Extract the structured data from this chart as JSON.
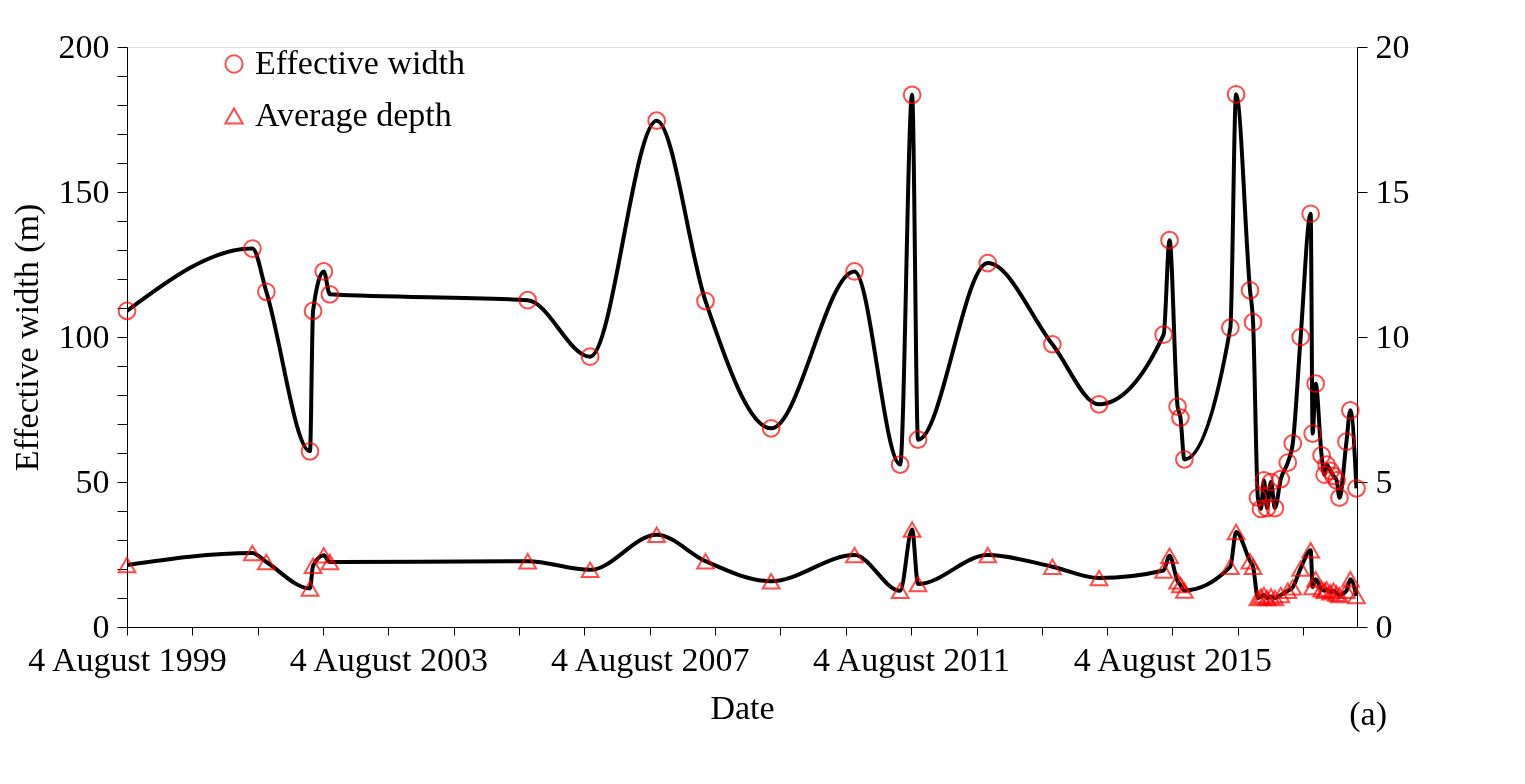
{
  "chart_data": {
    "type": "line",
    "xlabel": "Date",
    "ylabel": "Effective width (m)",
    "x": [
      "1999-08-04",
      "2001-07-05",
      "2001-09-21",
      "2002-05-23",
      "2002-06-09",
      "2002-08-08",
      "2002-09-11",
      "2005-09-21",
      "2006-09-05",
      "2007-09-12",
      "2008-06-11",
      "2009-06-13",
      "2010-09-22",
      "2011-06-04",
      "2011-08-10",
      "2011-09-12",
      "2012-10-06",
      "2013-10-02",
      "2014-06-20",
      "2015-06-16",
      "2015-07-19",
      "2015-09-02",
      "2015-09-18",
      "2015-10-10",
      "2016-06-23",
      "2016-07-25",
      "2016-10-11",
      "2016-10-28",
      "2016-11-24",
      "2016-12-11",
      "2016-12-28",
      "2017-01-14",
      "2017-02-05",
      "2017-02-27",
      "2017-04-01",
      "2017-05-10",
      "2017-06-07",
      "2017-07-21",
      "2017-09-15",
      "2017-09-26",
      "2017-10-13",
      "2017-11-15",
      "2017-12-02",
      "2017-12-13",
      "2018-01-04",
      "2018-01-21",
      "2018-02-07",
      "2018-02-23",
      "2018-04-03",
      "2018-04-25",
      "2018-05-29"
    ],
    "series": [
      {
        "name": "Effective width",
        "color": "#000000",
        "marker": "circle",
        "values": [
          109,
          130.5,
          115.6,
          60.6,
          109,
          122.6,
          114.7,
          112.7,
          93.2,
          174.6,
          112.4,
          68.5,
          122.6,
          56,
          183.5,
          64.6,
          125.5,
          97.5,
          76.8,
          100.8,
          133.4,
          76,
          72.2,
          57.8,
          103.2,
          183.7,
          116.1,
          105.1,
          44.6,
          40.7,
          50.6,
          41,
          50,
          41,
          51,
          56.7,
          63.3,
          100,
          142.5,
          66.7,
          83.9,
          59.2,
          52.5,
          56,
          53.8,
          52.1,
          50.6,
          44.6,
          63.9,
          74.7,
          47.8
        ]
      },
      {
        "name": "Average depth",
        "color": "#000000",
        "marker": "triangle",
        "axis": "y2",
        "values": [
          2.14,
          2.55,
          2.24,
          1.33,
          2.11,
          2.47,
          2.24,
          2.27,
          1.97,
          3.18,
          2.27,
          1.58,
          2.48,
          1.25,
          3.36,
          1.48,
          2.48,
          2.08,
          1.69,
          1.95,
          2.46,
          1.58,
          1.45,
          1.26,
          2.08,
          3.28,
          2.27,
          2.08,
          1.0,
          1.05,
          1.1,
          1.0,
          1.05,
          1.0,
          1.1,
          1.25,
          1.37,
          2.02,
          2.65,
          1.38,
          1.65,
          1.3,
          1.25,
          1.3,
          1.2,
          1.25,
          1.15,
          1.1,
          1.25,
          1.65,
          1.07
        ]
      }
    ],
    "xlim": [
      "1999-08-04",
      "2018-06-01"
    ],
    "xticks": [
      {
        "value": "1999-08-04",
        "label": "4 August 1999"
      },
      {
        "value": "2000-08-04",
        "label": null
      },
      {
        "value": "2001-08-04",
        "label": null
      },
      {
        "value": "2002-08-04",
        "label": null
      },
      {
        "value": "2003-08-04",
        "label": "4 August 2003"
      },
      {
        "value": "2004-08-04",
        "label": null
      },
      {
        "value": "2005-08-04",
        "label": null
      },
      {
        "value": "2006-08-04",
        "label": null
      },
      {
        "value": "2007-08-04",
        "label": "4 August 2007"
      },
      {
        "value": "2008-08-04",
        "label": null
      },
      {
        "value": "2009-08-04",
        "label": null
      },
      {
        "value": "2010-08-04",
        "label": null
      },
      {
        "value": "2011-08-04",
        "label": "4 August 2011"
      },
      {
        "value": "2012-08-04",
        "label": null
      },
      {
        "value": "2013-08-04",
        "label": null
      },
      {
        "value": "2014-08-04",
        "label": null
      },
      {
        "value": "2015-08-04",
        "label": "4 August 2015"
      },
      {
        "value": "2016-08-04",
        "label": null
      },
      {
        "value": "2017-08-04",
        "label": null
      }
    ],
    "ylim": [
      0,
      200
    ],
    "yticks": [
      0,
      {
        "value": 10,
        "label": null
      },
      {
        "value": 20,
        "label": null
      },
      {
        "value": 30,
        "label": null
      },
      {
        "value": 40,
        "label": null
      },
      50,
      {
        "value": 60,
        "label": null
      },
      {
        "value": 70,
        "label": null
      },
      {
        "value": 80,
        "label": null
      },
      {
        "value": 90,
        "label": null
      },
      100,
      {
        "value": 110,
        "label": null
      },
      {
        "value": 120,
        "label": null
      },
      {
        "value": 130,
        "label": null
      },
      {
        "value": 140,
        "label": null
      },
      150,
      {
        "value": 160,
        "label": null
      },
      {
        "value": 170,
        "label": null
      },
      {
        "value": 180,
        "label": null
      },
      {
        "value": 190,
        "label": null
      },
      200
    ],
    "y2lim": [
      0,
      20
    ],
    "y2ticks": [
      0,
      5,
      10,
      15,
      20
    ],
    "legend": "top left",
    "grid": false,
    "line_style": "solid",
    "annotations": [
      "(a)"
    ]
  }
}
